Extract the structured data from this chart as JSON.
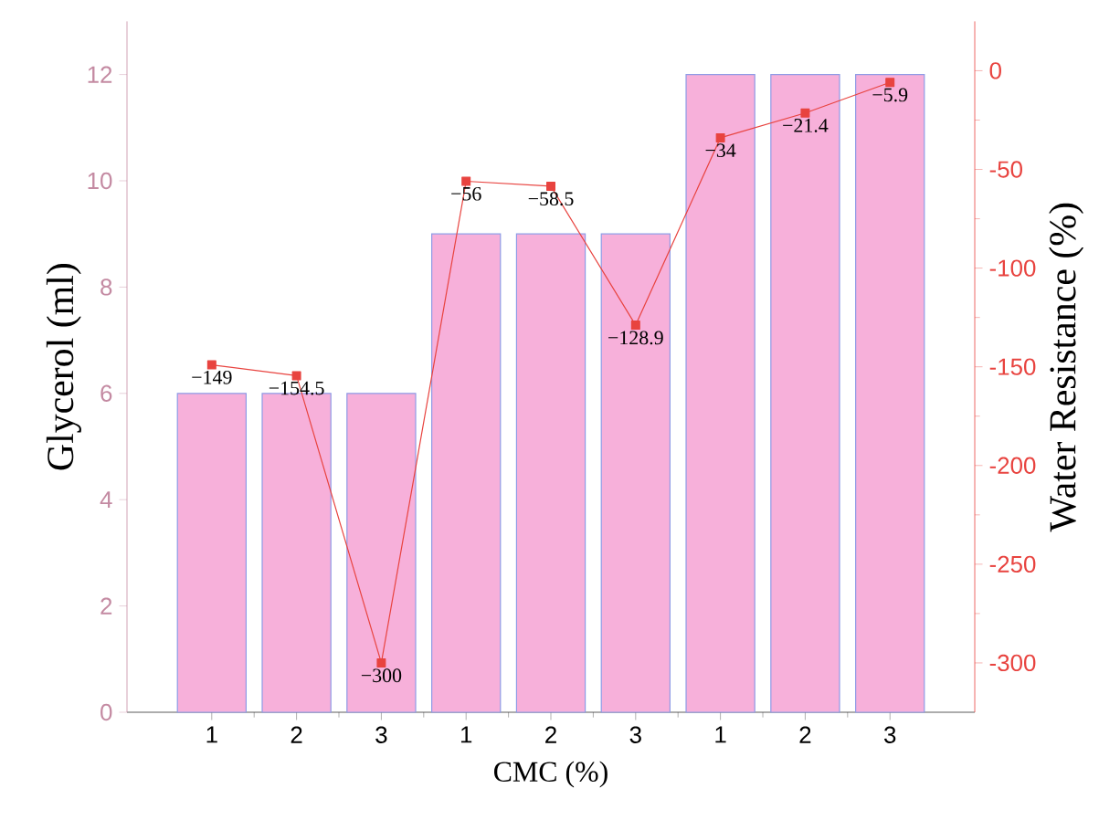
{
  "chart_data": {
    "type": "bar",
    "xlabel": "CMC (%)",
    "ylabel": "Glycerol (ml)",
    "y2label": "Water Resistance (%)",
    "categories": [
      "1",
      "2",
      "3",
      "1",
      "2",
      "3",
      "1",
      "2",
      "3"
    ],
    "ylim": [
      0,
      13
    ],
    "yticks": [
      0,
      2,
      4,
      6,
      8,
      10,
      12
    ],
    "y2lim": [
      -325,
      25
    ],
    "y2ticks": [
      0,
      -50,
      -100,
      -150,
      -200,
      -250,
      -300
    ],
    "series": [
      {
        "color": "#f7b0da",
        "values": [
          6,
          6,
          6,
          9,
          9,
          9,
          12,
          12,
          12
        ]
      },
      {
        "type": "line",
        "axis": "y2",
        "color": "#e8433f",
        "marker": "square",
        "values": [
          -149,
          -154.5,
          -300,
          -56,
          -58.5,
          -128.9,
          -34,
          -21.4,
          -5.9
        ],
        "value_labels": [
          "−149",
          "−154.5",
          "−300",
          "−56",
          "−58.5",
          "−128.9",
          "−34",
          "−21.4",
          "−5.9"
        ]
      }
    ]
  }
}
